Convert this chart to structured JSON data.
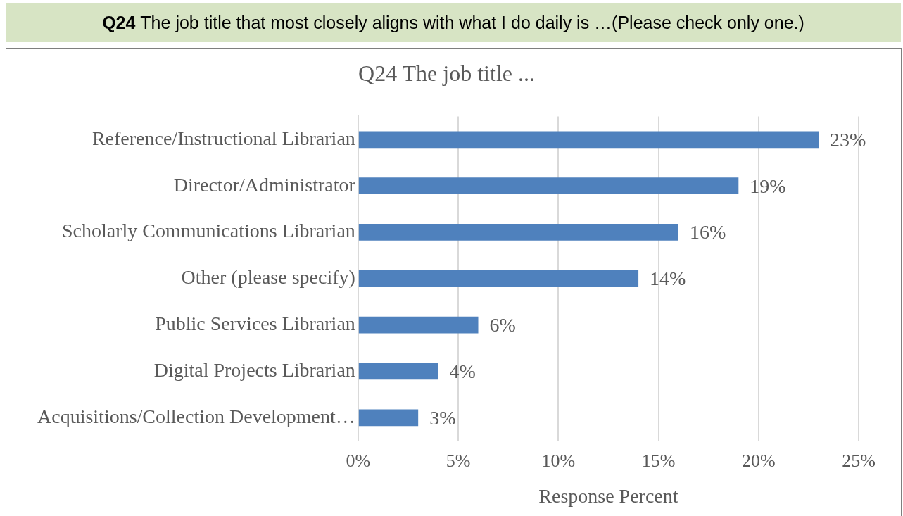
{
  "chart_data": {
    "type": "bar",
    "orientation": "horizontal",
    "title": "Q24 The job title that most closely aligns with what I do daily is …(Please check only one.)",
    "subtitle": "Q24 The job title ...",
    "xlabel": "Response Percent",
    "categories": [
      "Reference/Instructional Librarian",
      "Director/Administrator",
      "Scholarly Communications Librarian",
      "Other (please specify)",
      "Public Services Librarian",
      "Digital Projects Librarian",
      "Acquisitions/Collection Development…"
    ],
    "values": [
      23,
      19,
      16,
      14,
      6,
      4,
      3
    ],
    "value_labels": [
      "23%",
      "19%",
      "16%",
      "14%",
      "6%",
      "4%",
      "3%"
    ],
    "color": "#4f81bd",
    "xlim": [
      0,
      25
    ],
    "xticks": [
      {
        "value": 0,
        "label": "0%"
      },
      {
        "value": 5,
        "label": "5%"
      },
      {
        "value": 10,
        "label": "10%"
      },
      {
        "value": 15,
        "label": "15%"
      },
      {
        "value": 20,
        "label": "20%"
      },
      {
        "value": 25,
        "label": "25%"
      }
    ],
    "grid": "x",
    "legend": false
  }
}
